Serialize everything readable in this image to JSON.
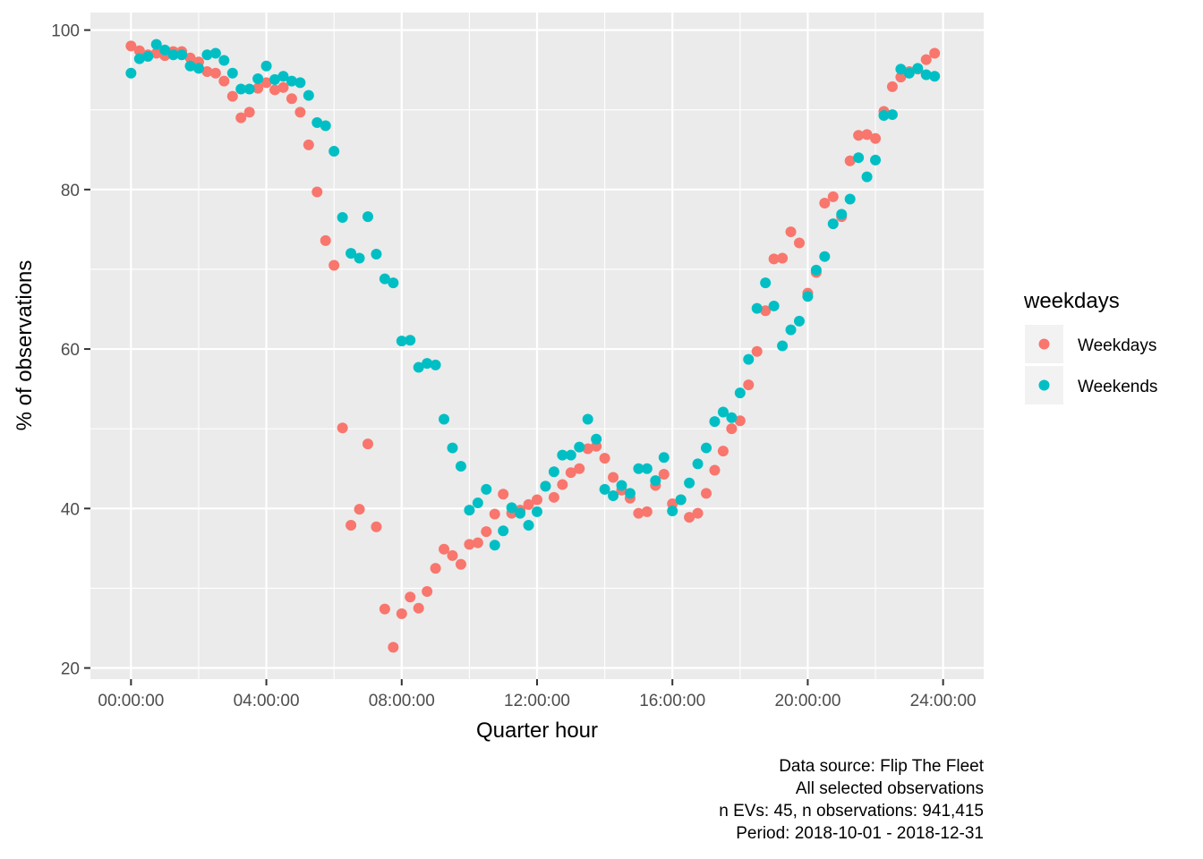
{
  "chart_data": {
    "type": "scatter",
    "xlabel": "Quarter hour",
    "ylabel": "% of observations",
    "xlim_hours": [
      -1.2,
      25.2
    ],
    "ylim": [
      18.6,
      102.2
    ],
    "x_ticks": [
      {
        "hour": 0,
        "label": "00:00:00"
      },
      {
        "hour": 4,
        "label": "04:00:00"
      },
      {
        "hour": 8,
        "label": "08:00:00"
      },
      {
        "hour": 12,
        "label": "12:00:00"
      },
      {
        "hour": 16,
        "label": "16:00:00"
      },
      {
        "hour": 20,
        "label": "20:00:00"
      },
      {
        "hour": 24,
        "label": "24:00:00"
      }
    ],
    "y_ticks": [
      20,
      40,
      60,
      80,
      100
    ],
    "grid": true,
    "legend": {
      "title": "weekdays",
      "position": "right"
    },
    "x_step_hours": 0.25,
    "series": [
      {
        "name": "Weekdays",
        "color": "#F8766D",
        "values": [
          98.0,
          97.4,
          96.9,
          97.1,
          96.8,
          97.3,
          97.3,
          96.5,
          96.0,
          94.8,
          94.6,
          93.6,
          91.7,
          89.0,
          89.7,
          92.7,
          93.4,
          92.5,
          92.8,
          91.4,
          89.7,
          85.6,
          79.7,
          73.6,
          70.5,
          50.1,
          37.9,
          39.9,
          48.1,
          37.7,
          27.4,
          22.6,
          26.8,
          28.9,
          27.5,
          29.6,
          32.5,
          34.9,
          34.1,
          33.0,
          35.5,
          35.7,
          37.1,
          39.3,
          41.8,
          39.4,
          39.8,
          40.5,
          41.1,
          42.8,
          41.4,
          43.0,
          44.5,
          45.0,
          47.5,
          47.8,
          46.3,
          43.9,
          42.3,
          41.3,
          39.4,
          39.6,
          42.9,
          44.3,
          40.6,
          41.1,
          38.9,
          39.4,
          41.9,
          44.8,
          47.2,
          50.0,
          51.0,
          55.5,
          59.7,
          64.8,
          71.3,
          71.4,
          74.7,
          73.3,
          67.0,
          69.6,
          78.3,
          79.1,
          76.6,
          83.6,
          86.8,
          86.9,
          86.4,
          89.8,
          92.9,
          94.1,
          94.8,
          95.1,
          96.3,
          97.1
        ]
      },
      {
        "name": "Weekends",
        "color": "#00BFC4",
        "values": [
          94.6,
          96.4,
          96.7,
          98.2,
          97.5,
          96.9,
          96.9,
          95.5,
          95.2,
          96.9,
          97.1,
          96.2,
          94.6,
          92.6,
          92.6,
          93.9,
          95.5,
          93.8,
          94.2,
          93.6,
          93.4,
          91.8,
          88.4,
          88.0,
          84.8,
          76.5,
          72.0,
          71.4,
          76.6,
          71.9,
          68.8,
          68.3,
          61.0,
          61.1,
          57.7,
          58.2,
          58.0,
          51.2,
          47.6,
          45.3,
          39.8,
          40.7,
          42.4,
          35.4,
          37.2,
          40.1,
          39.4,
          37.9,
          39.6,
          42.8,
          44.6,
          46.7,
          46.7,
          47.7,
          51.2,
          48.7,
          42.4,
          41.6,
          42.9,
          41.9,
          45.0,
          45.0,
          43.5,
          46.4,
          39.7,
          41.1,
          43.2,
          45.6,
          47.6,
          50.9,
          52.1,
          51.4,
          54.5,
          58.7,
          65.1,
          68.3,
          65.4,
          60.4,
          62.4,
          63.5,
          66.6,
          69.9,
          71.6,
          75.7,
          76.9,
          78.8,
          84.0,
          81.6,
          83.7,
          89.3,
          89.4,
          95.1,
          94.6,
          95.2,
          94.4,
          94.2
        ]
      }
    ],
    "caption": [
      "Data source: Flip The Fleet",
      "All selected observations",
      "n EVs: 45, n observations: 941,415",
      "Period: 2018-10-01 - 2018-12-31"
    ]
  }
}
